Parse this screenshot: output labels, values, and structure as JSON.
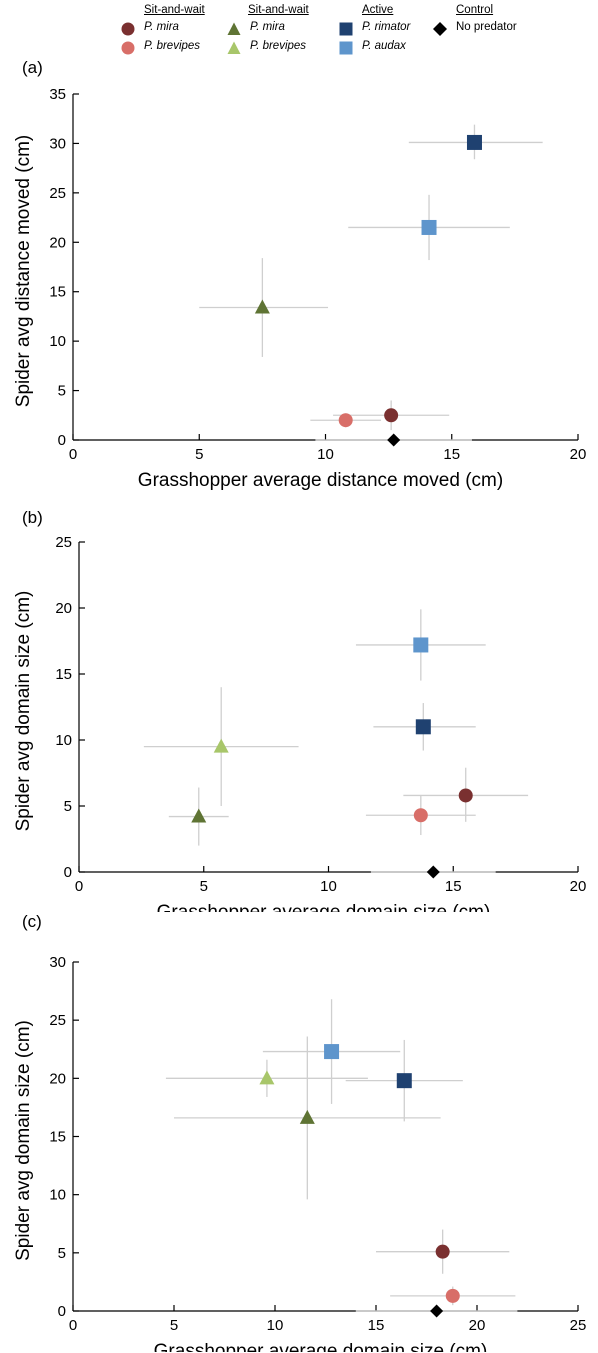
{
  "legend": {
    "groups": [
      {
        "heading": "Sit-and-wait",
        "items": [
          {
            "label": "P. mira",
            "marker": "circle",
            "color": "#7a3030"
          },
          {
            "label": "P. brevipes",
            "marker": "circle",
            "color": "#d86e68"
          }
        ]
      },
      {
        "heading": "Sit-and-wait",
        "items": [
          {
            "label": "P. mira",
            "marker": "triangle",
            "color": "#5f7434"
          },
          {
            "label": "P. brevipes",
            "marker": "triangle",
            "color": "#a8c66a"
          }
        ]
      },
      {
        "heading": "Active",
        "items": [
          {
            "label": "P. rimator",
            "marker": "square",
            "color": "#1f4170"
          },
          {
            "label": "P. audax",
            "marker": "square",
            "color": "#5e95cc"
          }
        ]
      },
      {
        "heading": "Control",
        "items": [
          {
            "label": "No predator",
            "marker": "diamond",
            "color": "#000000"
          }
        ]
      }
    ]
  },
  "chart_data": [
    {
      "panel": "(a)",
      "type": "scatter",
      "xlabel": "Grasshopper average distance moved (cm)",
      "ylabel": "Spider avg distance moved (cm)",
      "xlim": [
        0,
        20
      ],
      "ylim": [
        0,
        35
      ],
      "xticks": [
        0,
        5,
        10,
        15,
        20
      ],
      "yticks": [
        0,
        5,
        10,
        15,
        20,
        25,
        30,
        35
      ],
      "points": [
        {
          "series": "P. mira (circle)",
          "x": 12.6,
          "y": 2.5,
          "xerr": [
            10.3,
            14.9
          ],
          "yerr": [
            1.0,
            4.0
          ]
        },
        {
          "series": "P. brevipes (circle)",
          "x": 10.8,
          "y": 2.0,
          "xerr": [
            9.4,
            12.2
          ],
          "yerr": [
            1.3,
            2.7
          ]
        },
        {
          "series": "P. mira (triangle)",
          "x": 7.5,
          "y": 13.4,
          "xerr": [
            5.0,
            10.1
          ],
          "yerr": [
            8.4,
            18.4
          ]
        },
        {
          "series": "P. rimator",
          "x": 15.9,
          "y": 30.1,
          "xerr": [
            13.3,
            18.6
          ],
          "yerr": [
            28.4,
            31.9
          ]
        },
        {
          "series": "P. audax",
          "x": 14.1,
          "y": 21.5,
          "xerr": [
            10.9,
            17.3
          ],
          "yerr": [
            18.2,
            24.8
          ]
        },
        {
          "series": "No predator",
          "x": 12.7,
          "y": 0.0,
          "xerr": [
            9.6,
            15.8
          ],
          "yerr": null
        }
      ]
    },
    {
      "panel": "(b)",
      "type": "scatter",
      "xlabel": "Grasshopper average domain size (cm)",
      "ylabel": "Spider avg domain size (cm)",
      "xlim": [
        0,
        20
      ],
      "ylim": [
        0,
        25
      ],
      "xticks": [
        0,
        5,
        10,
        15,
        20
      ],
      "yticks": [
        0,
        5,
        10,
        15,
        20,
        25
      ],
      "points": [
        {
          "series": "P. mira (circle)",
          "x": 15.5,
          "y": 5.8,
          "xerr": [
            13.0,
            18.0
          ],
          "yerr": [
            3.8,
            7.9
          ]
        },
        {
          "series": "P. brevipes (circle)",
          "x": 13.7,
          "y": 4.3,
          "xerr": [
            11.5,
            15.9
          ],
          "yerr": [
            2.8,
            5.8
          ]
        },
        {
          "series": "P. mira (triangle)",
          "x": 4.8,
          "y": 4.2,
          "xerr": [
            3.6,
            6.0
          ],
          "yerr": [
            2.0,
            6.4
          ]
        },
        {
          "series": "P. brevipes (triangle)",
          "x": 5.7,
          "y": 9.5,
          "xerr": [
            2.6,
            8.8
          ],
          "yerr": [
            5.0,
            14.0
          ]
        },
        {
          "series": "P. rimator",
          "x": 13.8,
          "y": 11.0,
          "xerr": [
            11.8,
            15.9
          ],
          "yerr": [
            9.2,
            12.8
          ]
        },
        {
          "series": "P. audax",
          "x": 13.7,
          "y": 17.2,
          "xerr": [
            11.1,
            16.3
          ],
          "yerr": [
            14.5,
            19.9
          ]
        },
        {
          "series": "No predator",
          "x": 14.2,
          "y": 0.0,
          "xerr": [
            11.7,
            16.7
          ],
          "yerr": null
        }
      ]
    },
    {
      "panel": "(c)",
      "type": "scatter",
      "xlabel": "Grasshopper average domain size (cm)",
      "ylabel": "Spider avg domain size (cm)",
      "xlim": [
        0,
        25
      ],
      "ylim": [
        0,
        30
      ],
      "xticks": [
        0,
        5,
        10,
        15,
        20,
        25
      ],
      "yticks": [
        0,
        5,
        10,
        15,
        20,
        25,
        30
      ],
      "points": [
        {
          "series": "P. mira (circle)",
          "x": 18.3,
          "y": 5.1,
          "xerr": [
            15.0,
            21.6
          ],
          "yerr": [
            3.2,
            7.0
          ]
        },
        {
          "series": "P. brevipes (circle)",
          "x": 18.8,
          "y": 1.3,
          "xerr": [
            15.7,
            21.9
          ],
          "yerr": [
            0.5,
            2.1
          ]
        },
        {
          "series": "P. mira (triangle)",
          "x": 11.6,
          "y": 16.6,
          "xerr": [
            5.0,
            18.2
          ],
          "yerr": [
            9.6,
            23.6
          ]
        },
        {
          "series": "P. brevipes (triangle)",
          "x": 9.6,
          "y": 20.0,
          "xerr": [
            4.6,
            14.6
          ],
          "yerr": [
            18.4,
            21.6
          ]
        },
        {
          "series": "P. rimator",
          "x": 16.4,
          "y": 19.8,
          "xerr": [
            13.5,
            19.3
          ],
          "yerr": [
            16.3,
            23.3
          ]
        },
        {
          "series": "P. audax",
          "x": 12.8,
          "y": 22.3,
          "xerr": [
            9.4,
            16.2
          ],
          "yerr": [
            17.8,
            26.8
          ]
        },
        {
          "series": "No predator",
          "x": 18.0,
          "y": 0.0,
          "xerr": [
            14.0,
            22.0
          ],
          "yerr": null
        }
      ]
    }
  ]
}
